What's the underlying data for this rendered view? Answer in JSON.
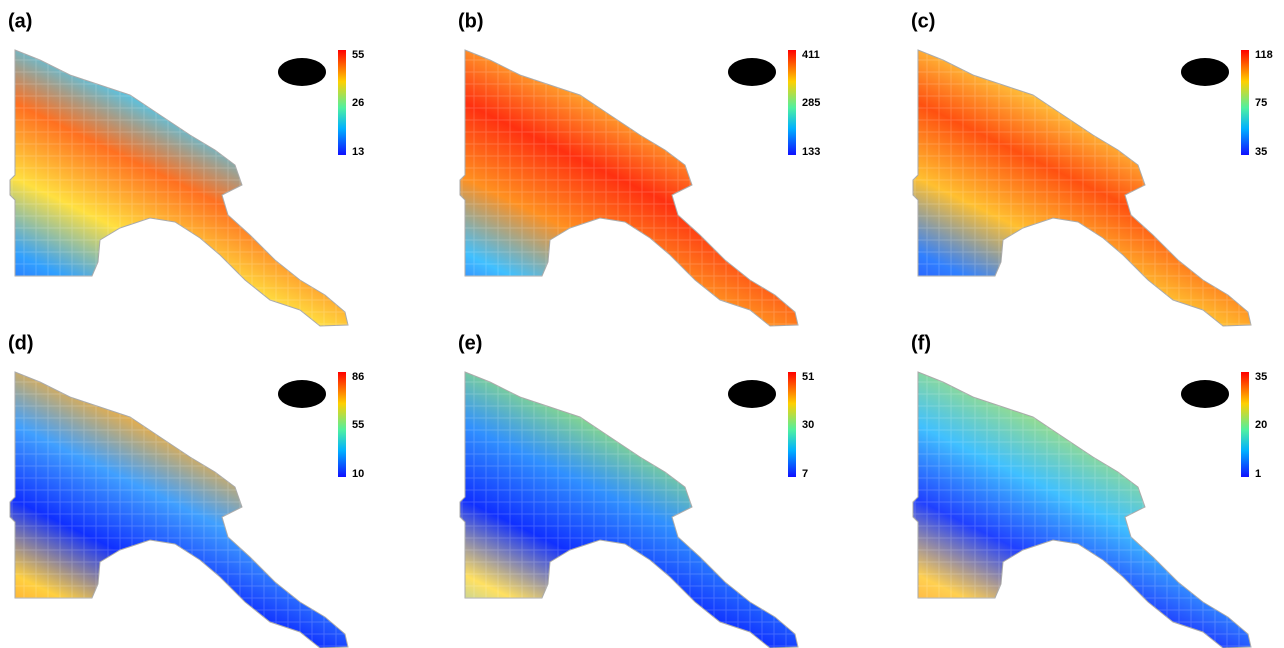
{
  "panels": [
    {
      "label": "(a)",
      "scale": {
        "max": 55,
        "mid": 26,
        "min": 13
      }
    },
    {
      "label": "(b)",
      "scale": {
        "max": 411,
        "mid": 285,
        "min": 133
      }
    },
    {
      "label": "(c)",
      "scale": {
        "max": 118,
        "mid": 75,
        "min": 35
      }
    },
    {
      "label": "(d)",
      "scale": {
        "max": 86,
        "mid": 55,
        "min": 10
      }
    },
    {
      "label": "(e)",
      "scale": {
        "max": 51,
        "mid": 30,
        "min": 7
      }
    },
    {
      "label": "(f)",
      "scale": {
        "max": 35,
        "mid": 20,
        "min": 1
      }
    }
  ]
}
